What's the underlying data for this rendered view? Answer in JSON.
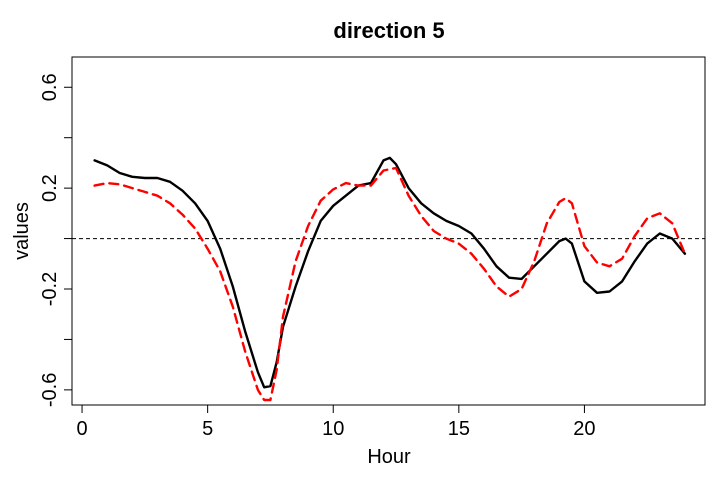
{
  "chart_data": {
    "type": "line",
    "title": "direction 5",
    "xlabel": "Hour",
    "ylabel": "values",
    "xlim": [
      -0.4,
      24.8
    ],
    "ylim": [
      -0.66,
      0.72
    ],
    "x_ticks": [
      0,
      5,
      10,
      15,
      20
    ],
    "x_tick_labels": [
      "0",
      "5",
      "10",
      "15",
      "20"
    ],
    "y_ticks": [
      -0.6,
      -0.4,
      -0.2,
      0.0,
      0.2,
      0.4,
      0.6
    ],
    "y_tick_labels": [
      "-0.6",
      "",
      "-0.2",
      "",
      "0.2",
      "",
      "0.6"
    ],
    "reference_line": {
      "y": 0,
      "style": "dashed",
      "color": "#000000"
    },
    "grid": false,
    "series": [
      {
        "style": "solid",
        "color": "#000000",
        "x": [
          0.5,
          1.0,
          1.5,
          2.0,
          2.5,
          3.0,
          3.5,
          4.0,
          4.5,
          5.0,
          5.5,
          6.0,
          6.5,
          7.0,
          7.25,
          7.5,
          7.75,
          8.0,
          8.5,
          9.0,
          9.5,
          10.0,
          10.5,
          11.0,
          11.5,
          12.0,
          12.25,
          12.5,
          13.0,
          13.5,
          14.0,
          14.5,
          15.0,
          15.5,
          16.0,
          16.5,
          17.0,
          17.5,
          18.0,
          18.5,
          19.0,
          19.25,
          19.5,
          20.0,
          20.5,
          21.0,
          21.5,
          22.0,
          22.5,
          23.0,
          23.5,
          24.0
        ],
        "y": [
          0.31,
          0.29,
          0.26,
          0.245,
          0.24,
          0.24,
          0.225,
          0.19,
          0.14,
          0.07,
          -0.04,
          -0.19,
          -0.37,
          -0.53,
          -0.59,
          -0.585,
          -0.49,
          -0.35,
          -0.19,
          -0.05,
          0.07,
          0.13,
          0.17,
          0.21,
          0.22,
          0.31,
          0.32,
          0.295,
          0.2,
          0.14,
          0.1,
          0.07,
          0.05,
          0.02,
          -0.04,
          -0.11,
          -0.155,
          -0.16,
          -0.11,
          -0.06,
          -0.01,
          0.0,
          -0.02,
          -0.17,
          -0.215,
          -0.21,
          -0.17,
          -0.09,
          -0.02,
          0.02,
          0.0,
          -0.06
        ]
      },
      {
        "style": "dashed",
        "color": "#ff0000",
        "x": [
          0.5,
          1.0,
          1.5,
          2.0,
          2.5,
          3.0,
          3.5,
          4.0,
          4.5,
          5.0,
          5.5,
          6.0,
          6.5,
          7.0,
          7.25,
          7.5,
          7.75,
          8.0,
          8.5,
          9.0,
          9.5,
          10.0,
          10.5,
          11.0,
          11.5,
          12.0,
          12.5,
          13.0,
          13.5,
          14.0,
          14.5,
          15.0,
          15.5,
          16.0,
          16.5,
          17.0,
          17.5,
          18.0,
          18.5,
          19.0,
          19.25,
          19.5,
          20.0,
          20.5,
          21.0,
          21.5,
          22.0,
          22.5,
          23.0,
          23.5,
          24.0
        ],
        "y": [
          0.21,
          0.22,
          0.215,
          0.2,
          0.185,
          0.17,
          0.14,
          0.095,
          0.04,
          -0.04,
          -0.13,
          -0.27,
          -0.45,
          -0.6,
          -0.64,
          -0.64,
          -0.52,
          -0.31,
          -0.09,
          0.05,
          0.15,
          0.195,
          0.22,
          0.21,
          0.21,
          0.27,
          0.28,
          0.17,
          0.09,
          0.03,
          0.0,
          -0.02,
          -0.06,
          -0.12,
          -0.19,
          -0.23,
          -0.2,
          -0.09,
          0.06,
          0.145,
          0.16,
          0.14,
          -0.03,
          -0.095,
          -0.11,
          -0.08,
          0.01,
          0.08,
          0.1,
          0.06,
          -0.06
        ]
      }
    ]
  }
}
